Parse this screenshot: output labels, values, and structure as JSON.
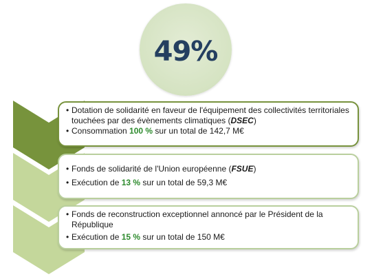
{
  "summary": {
    "percent": "49%"
  },
  "colors": {
    "chevron_dark": "#77933c",
    "chevron_light": "#c4d79b",
    "highlight": "#2e8b2e",
    "circle_fill": "#d7e4bd",
    "percent_text": "#243f60"
  },
  "items": [
    {
      "title_pre": "Dotation de solidarité en faveur de l'équipement des collectivités territoriales touchées par des évènements climatiques (",
      "title_abbr": "DSEC",
      "title_post": ")",
      "stat_pre": "Consommation ",
      "stat_value": "100 %",
      "stat_post": " sur un total de 142,7  M€"
    },
    {
      "title_pre": "Fonds de solidarité de l'Union européenne (",
      "title_abbr": "FSUE",
      "title_post": ")",
      "stat_pre": "Exécution de ",
      "stat_value": "13 %",
      "stat_post": " sur un total de 59,3  M€"
    },
    {
      "title_pre": "Fonds de reconstruction exceptionnel annoncé par le Président de la République",
      "title_abbr": "",
      "title_post": "",
      "stat_pre": "Exécution de ",
      "stat_value": "15 %",
      "stat_post": " sur un total de 150  M€"
    }
  ]
}
